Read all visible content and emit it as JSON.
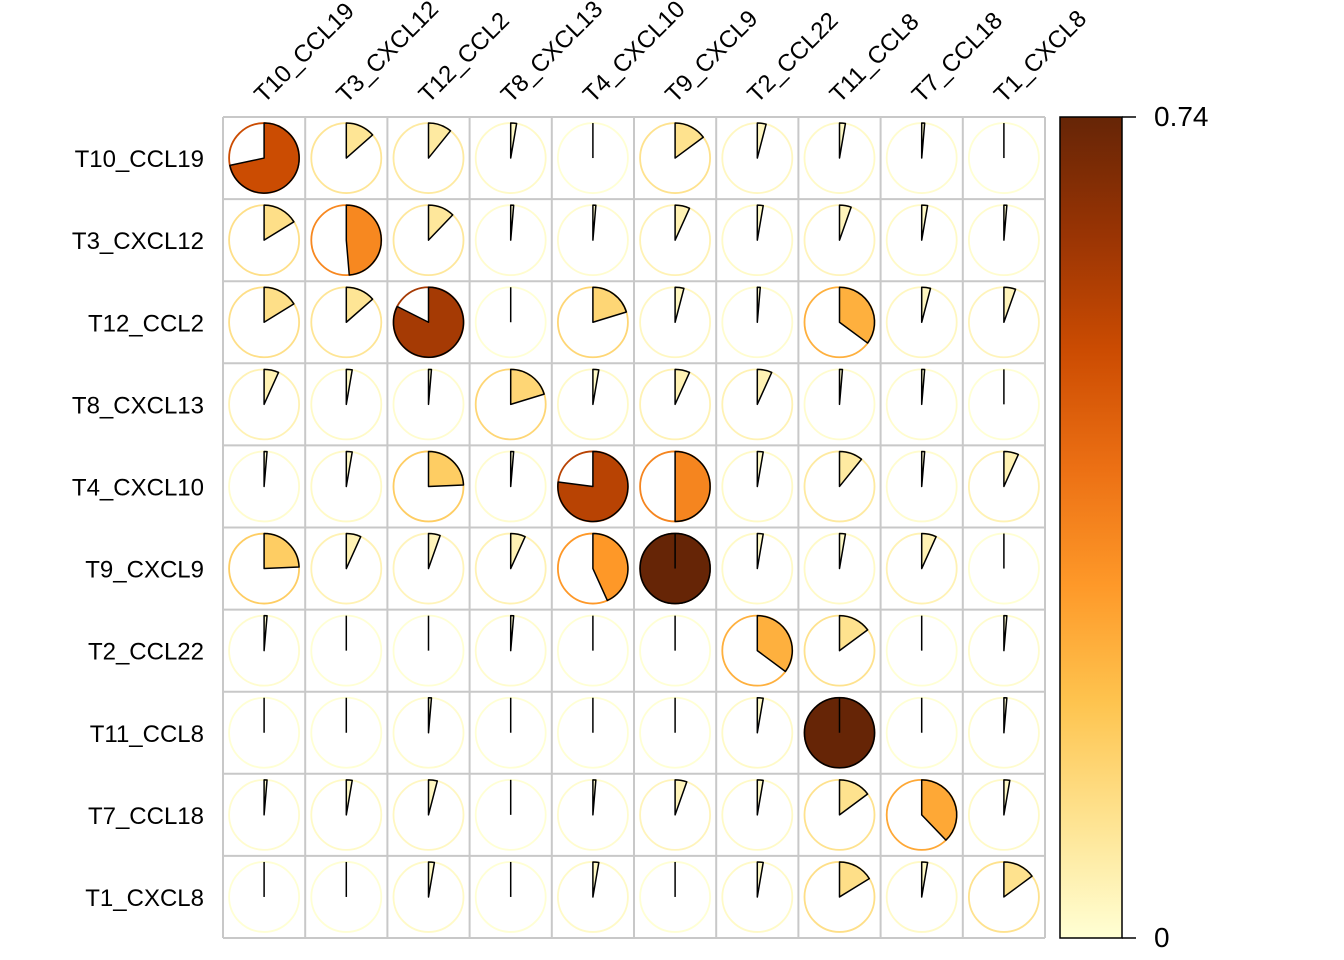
{
  "chart_data": {
    "type": "heatmap",
    "glyph": "pie",
    "title": "",
    "rows": [
      "T10_CCL19",
      "T3_CXCL12",
      "T12_CCL2",
      "T8_CXCL13",
      "T4_CXCL10",
      "T9_CXCL9",
      "T2_CCL22",
      "T11_CCL8",
      "T7_CCL18",
      "T1_CXCL8"
    ],
    "columns": [
      "T10_CCL19",
      "T3_CXCL12",
      "T12_CCL2",
      "T8_CXCL13",
      "T4_CXCL10",
      "T9_CXCL9",
      "T2_CCL22",
      "T11_CCL8",
      "T7_CCL18",
      "T1_CXCL8"
    ],
    "values": [
      [
        0.53,
        0.1,
        0.08,
        0.02,
        0.0,
        0.11,
        0.03,
        0.02,
        0.01,
        0.0
      ],
      [
        0.12,
        0.36,
        0.09,
        0.01,
        0.01,
        0.05,
        0.02,
        0.04,
        0.02,
        0.01
      ],
      [
        0.12,
        0.1,
        0.61,
        0.0,
        0.15,
        0.03,
        0.01,
        0.26,
        0.03,
        0.04
      ],
      [
        0.05,
        0.02,
        0.01,
        0.15,
        0.02,
        0.05,
        0.05,
        0.01,
        0.01,
        0.0
      ],
      [
        0.01,
        0.02,
        0.18,
        0.01,
        0.57,
        0.37,
        0.02,
        0.08,
        0.01,
        0.05
      ],
      [
        0.18,
        0.05,
        0.04,
        0.05,
        0.32,
        0.74,
        0.02,
        0.02,
        0.05,
        0.0
      ],
      [
        0.01,
        0.0,
        0.0,
        0.01,
        0.0,
        0.0,
        0.26,
        0.11,
        0.0,
        0.01
      ],
      [
        0.0,
        0.0,
        0.01,
        0.0,
        0.0,
        0.0,
        0.02,
        0.74,
        0.0,
        0.01
      ],
      [
        0.01,
        0.02,
        0.03,
        0.0,
        0.01,
        0.04,
        0.02,
        0.11,
        0.28,
        0.02
      ],
      [
        0.0,
        0.0,
        0.02,
        0.0,
        0.02,
        0.0,
        0.02,
        0.12,
        0.02,
        0.11
      ]
    ],
    "color_range": [
      0,
      0.74
    ],
    "colorbar_labels": [
      "0.74",
      "0"
    ],
    "palette": [
      "#FFFFD4",
      "#FEE391",
      "#FEC44F",
      "#FE9929",
      "#EC7014",
      "#CC4C02",
      "#993404",
      "#662506"
    ],
    "grid": true,
    "legend": "colorbar-right"
  }
}
